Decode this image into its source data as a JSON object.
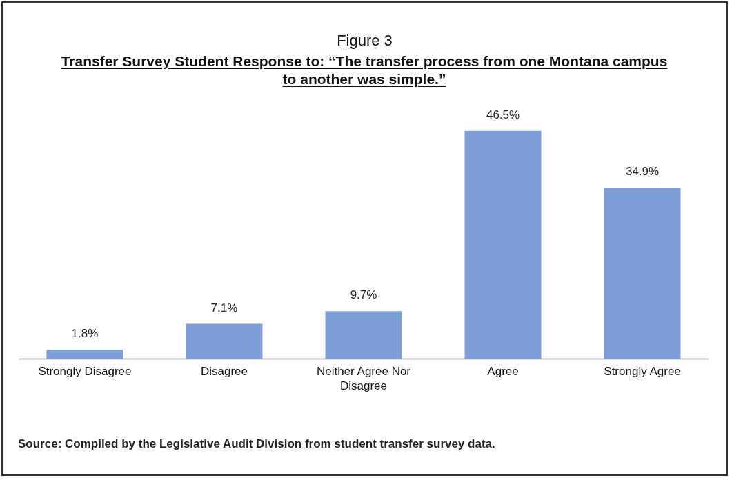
{
  "chart_data": {
    "type": "bar",
    "title": "Figure 3",
    "subtitle": "Transfer Survey Student Response to: “The transfer process from one Montana campus to another was simple.”",
    "categories": [
      "Strongly Disagree",
      "Disagree",
      "Neither Agree Nor Disagree",
      "Agree",
      "Strongly Agree"
    ],
    "values": [
      1.8,
      7.1,
      9.7,
      46.5,
      34.9
    ],
    "value_labels": [
      "1.8%",
      "7.1%",
      "9.7%",
      "46.5%",
      "34.9%"
    ],
    "color": "#7f9ed6",
    "annotations": [
      "Source:  Compiled by the Legislative Audit Division from student transfer survey data."
    ]
  }
}
